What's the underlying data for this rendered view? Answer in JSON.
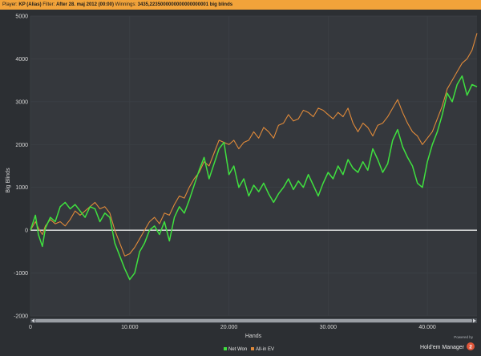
{
  "header": {
    "player_label": "Player:",
    "player_value": "KP (Alias)",
    "filter_label": "Filter:",
    "filter_value": "After 28. maj 2012 (00:00)",
    "winnings_label": "Winnings:",
    "winnings_value": "3435,2235000000000000000001 big blinds"
  },
  "footer": {
    "powered_by": "Powered by",
    "brand": "Hold'em Manager",
    "brand_badge": "2"
  },
  "colors": {
    "net_won": "#3fe03f",
    "allin_ev": "#e08a3a",
    "zero_line": "#ffffff",
    "background": "#2c2f33",
    "grid": "#3c4046"
  },
  "chart_data": {
    "type": "line",
    "xlabel": "Hands",
    "ylabel": "Big Blinds",
    "xlim": [
      0,
      45000
    ],
    "ylim": [
      -2000,
      5000
    ],
    "x_ticks": [
      0,
      10000,
      20000,
      30000,
      40000
    ],
    "x_tick_labels": [
      "0",
      "10.000",
      "20.000",
      "30.000",
      "40.000"
    ],
    "y_ticks": [
      -2000,
      -1000,
      0,
      1000,
      2000,
      3000,
      4000,
      5000
    ],
    "y_tick_labels": [
      "-2000",
      "-1000",
      "0",
      "1000",
      "2000",
      "3000",
      "4000",
      "5000"
    ],
    "grid": true,
    "legend_position": "bottom-center",
    "series": [
      {
        "name": "Net Won",
        "color": "#3fe03f",
        "x": [
          0,
          500,
          800,
          1200,
          1500,
          2000,
          2500,
          3000,
          3500,
          4000,
          4500,
          5000,
          5500,
          6000,
          6500,
          7000,
          7500,
          8000,
          8500,
          9000,
          9500,
          10000,
          10500,
          11000,
          11500,
          12000,
          12500,
          13000,
          13500,
          14000,
          14500,
          15000,
          15500,
          16000,
          16500,
          17000,
          17500,
          18000,
          18500,
          19000,
          19500,
          20000,
          20500,
          21000,
          21500,
          22000,
          22500,
          23000,
          23500,
          24000,
          24500,
          25000,
          25500,
          26000,
          26500,
          27000,
          27500,
          28000,
          28500,
          29000,
          29500,
          30000,
          30500,
          31000,
          31500,
          32000,
          32500,
          33000,
          33500,
          34000,
          34500,
          35000,
          35500,
          36000,
          36500,
          37000,
          37500,
          38000,
          38500,
          39000,
          39500,
          40000,
          40500,
          41000,
          41500,
          42000,
          42500,
          43000,
          43500,
          44000,
          44500,
          45000
        ],
        "values": [
          0,
          350,
          -100,
          -380,
          50,
          300,
          200,
          550,
          650,
          500,
          600,
          450,
          300,
          550,
          500,
          200,
          400,
          300,
          -300,
          -600,
          -900,
          -1150,
          -1000,
          -500,
          -300,
          0,
          100,
          -100,
          200,
          -250,
          300,
          550,
          400,
          700,
          1050,
          1400,
          1700,
          1200,
          1550,
          1900,
          2050,
          1300,
          1500,
          1000,
          1200,
          800,
          1050,
          900,
          1100,
          850,
          650,
          850,
          1000,
          1200,
          950,
          1150,
          1000,
          1300,
          1050,
          800,
          1100,
          1350,
          1200,
          1500,
          1300,
          1650,
          1450,
          1350,
          1600,
          1400,
          1900,
          1650,
          1350,
          1550,
          2100,
          2350,
          1950,
          1700,
          1500,
          1100,
          1000,
          1600,
          2000,
          2300,
          2700,
          3200,
          3000,
          3400,
          3600,
          3150,
          3400,
          3350
        ]
      },
      {
        "name": "All-in EV",
        "color": "#e08a3a",
        "x": [
          0,
          500,
          800,
          1200,
          1500,
          2000,
          2500,
          3000,
          3500,
          4000,
          4500,
          5000,
          5500,
          6000,
          6500,
          7000,
          7500,
          8000,
          8500,
          9000,
          9500,
          10000,
          10500,
          11000,
          11500,
          12000,
          12500,
          13000,
          13500,
          14000,
          14500,
          15000,
          15500,
          16000,
          16500,
          17000,
          17500,
          18000,
          18500,
          19000,
          19500,
          20000,
          20500,
          21000,
          21500,
          22000,
          22500,
          23000,
          23500,
          24000,
          24500,
          25000,
          25500,
          26000,
          26500,
          27000,
          27500,
          28000,
          28500,
          29000,
          29500,
          30000,
          30500,
          31000,
          31500,
          32000,
          32500,
          33000,
          33500,
          34000,
          34500,
          35000,
          35500,
          36000,
          36500,
          37000,
          37500,
          38000,
          38500,
          39000,
          39500,
          40000,
          40500,
          41000,
          41500,
          42000,
          42500,
          43000,
          43500,
          44000,
          44500,
          45000
        ],
        "values": [
          0,
          200,
          50,
          -100,
          100,
          250,
          150,
          200,
          100,
          250,
          450,
          350,
          450,
          550,
          650,
          500,
          550,
          400,
          0,
          -300,
          -600,
          -550,
          -400,
          -200,
          0,
          200,
          300,
          150,
          400,
          350,
          600,
          800,
          750,
          1000,
          1200,
          1350,
          1600,
          1500,
          1800,
          2100,
          2050,
          2000,
          2100,
          1900,
          2050,
          2100,
          2300,
          2150,
          2400,
          2300,
          2150,
          2450,
          2500,
          2700,
          2550,
          2600,
          2800,
          2750,
          2650,
          2850,
          2800,
          2700,
          2600,
          2750,
          2650,
          2850,
          2500,
          2300,
          2500,
          2400,
          2200,
          2450,
          2500,
          2650,
          2850,
          3050,
          2750,
          2500,
          2300,
          2200,
          2000,
          2150,
          2300,
          2600,
          2900,
          3300,
          3500,
          3700,
          3900,
          4000,
          4200,
          4600
        ]
      }
    ]
  }
}
